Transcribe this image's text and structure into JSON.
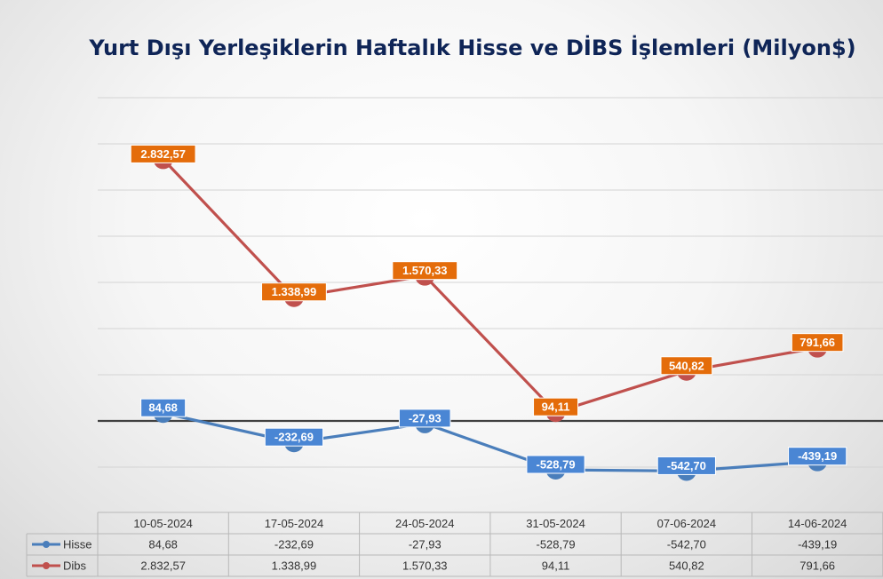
{
  "colors": {
    "hisse_line": "#4a7ebb",
    "hisse_label_bg": "#4a86d4",
    "dibs_line": "#c0504d",
    "dibs_label_bg": "#e46c0a",
    "title": "#0f2557",
    "zero_line": "#404040",
    "grid": "#d4d4d4"
  },
  "chart_data": {
    "type": "line",
    "title": "Yurt Dışı Yerleşiklerin Haftalık Hisse ve DİBS İşlemleri (Milyon$)",
    "xlabel": "",
    "ylabel": "",
    "categories": [
      "10-05-2024",
      "17-05-2024",
      "24-05-2024",
      "31-05-2024",
      "07-06-2024",
      "14-06-2024"
    ],
    "series": [
      {
        "name": "Hisse",
        "values": [
          84.68,
          -232.69,
          -27.93,
          -528.79,
          -542.7,
          -439.19
        ],
        "labels": [
          "84,68",
          "-232,69",
          "-27,93",
          "-528,79",
          "-542,70",
          "-439,19"
        ],
        "color": "#4a7ebb"
      },
      {
        "name": "Dibs",
        "values": [
          2832.57,
          1338.99,
          1570.33,
          94.11,
          540.82,
          791.66
        ],
        "labels": [
          "2.832,57",
          "1.338,99",
          "1.570,33",
          "94,11",
          "540,82",
          "791,66"
        ],
        "color": "#c0504d"
      }
    ],
    "ylim": [
      -1000,
      3500
    ],
    "grid": true,
    "legend": "data-table-bottom",
    "data_table": true
  }
}
